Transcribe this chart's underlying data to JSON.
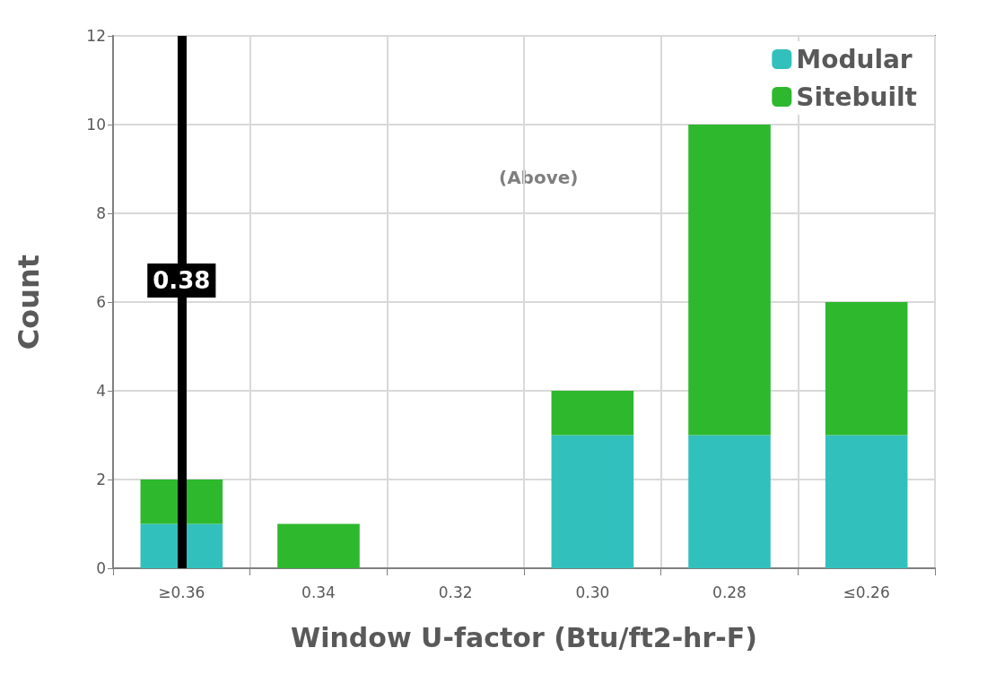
{
  "chart_data": {
    "type": "bar",
    "stacked": true,
    "xlabel": "Window U-factor (Btu/ft2-hr-F)",
    "ylabel": "Count",
    "categories": [
      "≥0.36",
      "0.34",
      "0.32",
      "0.30",
      "0.28",
      "≤0.26"
    ],
    "series": [
      {
        "name": "Modular",
        "color": "#32c0bc",
        "values": [
          1,
          0,
          0,
          3,
          3,
          3
        ]
      },
      {
        "name": "Sitebuilt",
        "color": "#2eb82e",
        "values": [
          1,
          1,
          0,
          1,
          7,
          3
        ]
      }
    ],
    "ylim": [
      0,
      12
    ],
    "yticks": [
      0,
      2,
      4,
      6,
      8,
      10,
      12
    ],
    "grid": true,
    "legend": "top right",
    "ref_lines": [
      {
        "axis": "x",
        "value": "≥0.36",
        "label": "0.38",
        "color": "#000000"
      }
    ],
    "annotations": [
      "(Above)"
    ]
  }
}
